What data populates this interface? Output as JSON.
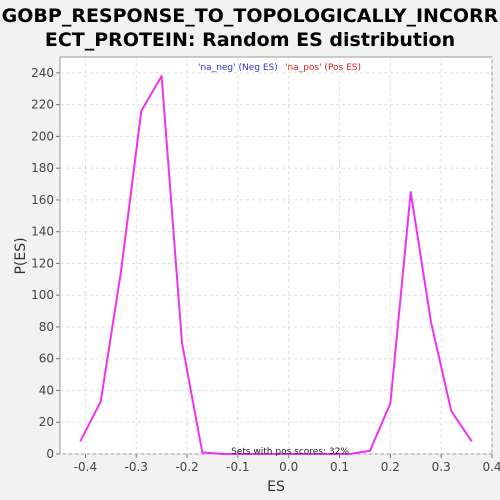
{
  "chart_data": {
    "type": "line",
    "title": "GOBP_RESPONSE_TO_TOPOLOGICALLY_INCORRECT_PROTEIN: Random ES distribution",
    "title_lines": [
      "GOBP_RESPONSE_TO_TOPOLOGICALLY_INCORR",
      "ECT_PROTEIN: Random ES distribution"
    ],
    "xlabel": "ES",
    "ylabel": "P(ES)",
    "xlim": [
      -0.45,
      0.4
    ],
    "ylim": [
      0,
      250
    ],
    "xticks": [
      -0.4,
      -0.3,
      -0.2,
      -0.1,
      0.0,
      0.1,
      0.2,
      0.3,
      0.4
    ],
    "xtick_labels": [
      "-0.4",
      "-0.3",
      "-0.2",
      "-0.1",
      "0.0",
      "0.1",
      "0.2",
      "0.3",
      "0.4"
    ],
    "yticks": [
      0,
      20,
      40,
      60,
      80,
      100,
      120,
      140,
      160,
      180,
      200,
      220,
      240
    ],
    "ytick_labels": [
      "0",
      "20",
      "40",
      "60",
      "80",
      "100",
      "120",
      "140",
      "160",
      "180",
      "200",
      "220",
      "240"
    ],
    "grid": true,
    "legend": {
      "placement": "top",
      "neg_label": "'na_neg' (Neg ES)",
      "pos_label": "'na_pos' (Pos ES)",
      "neg_color": "#3333cc",
      "pos_color": "#dd2222"
    },
    "series": [
      {
        "x": [
          -0.41,
          -0.37,
          -0.33,
          -0.29,
          -0.25,
          -0.21,
          -0.17,
          -0.13,
          -0.09,
          -0.05,
          -0.01,
          0.03,
          0.07,
          0.11,
          0.12,
          0.16,
          0.2,
          0.24,
          0.28,
          0.32,
          0.36
        ],
        "y": [
          8,
          33,
          115,
          216,
          238,
          70,
          1,
          0,
          0,
          0,
          0,
          0,
          0,
          0,
          0,
          2,
          32,
          165,
          83,
          27,
          8
        ]
      }
    ],
    "series_color": "#ee33ee",
    "annotation": "Sets with pos scores: 32%"
  }
}
